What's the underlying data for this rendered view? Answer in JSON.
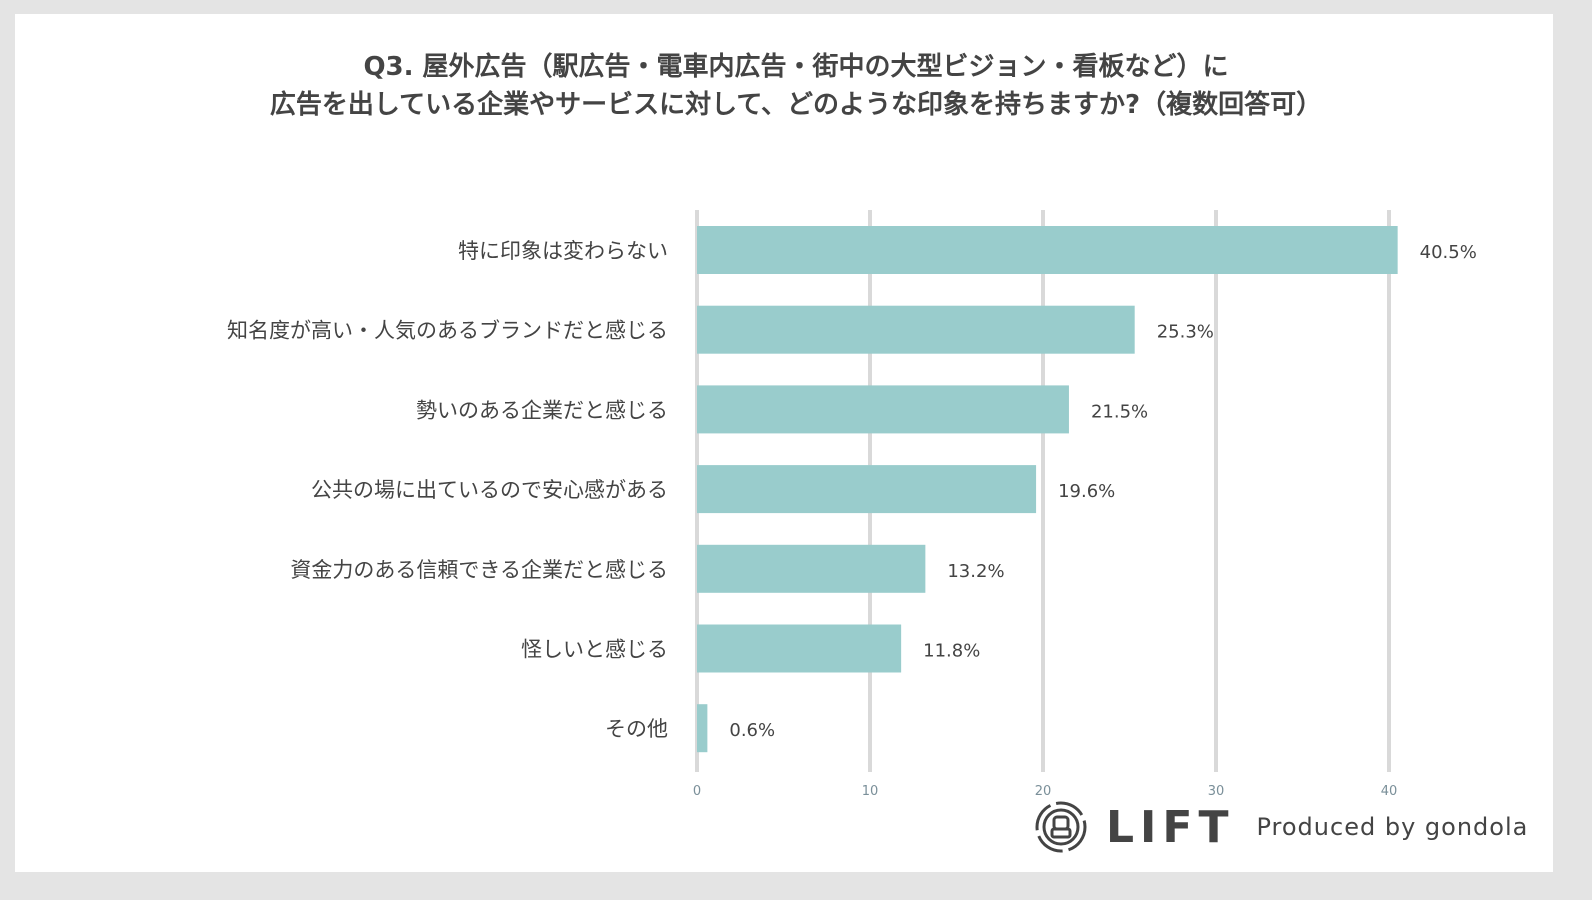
{
  "chart_data": {
    "type": "bar",
    "orientation": "horizontal",
    "title_lines": [
      "Q3. 屋外広告（駅広告・電車内広告・街中の大型ビジョン・看板など）に",
      "広告を出している企業やサービスに対して、どのような印象を持ちますか?（複数回答可）"
    ],
    "categories": [
      "特に印象は変わらない",
      "知名度が高い・人気のあるブランドだと感じる",
      "勢いのある企業だと感じる",
      "公共の場に出ているので安心感がある",
      "資金力のある信頼できる企業だと感じる",
      "怪しいと感じる",
      "その他"
    ],
    "values": [
      40.5,
      25.3,
      21.5,
      19.6,
      13.2,
      11.8,
      0.6
    ],
    "value_labels": [
      "40.5%",
      "25.3%",
      "21.5%",
      "19.6%",
      "13.2%",
      "11.8%",
      "0.6%"
    ],
    "xlim": [
      0,
      40
    ],
    "xticks": [
      "0",
      "10",
      "20",
      "30",
      "40"
    ],
    "grid": true,
    "bar_color": "#99cccc",
    "xlabel": "",
    "ylabel": ""
  },
  "branding": {
    "logo_text": "LIFT",
    "produced_by": "Produced by gondola"
  }
}
